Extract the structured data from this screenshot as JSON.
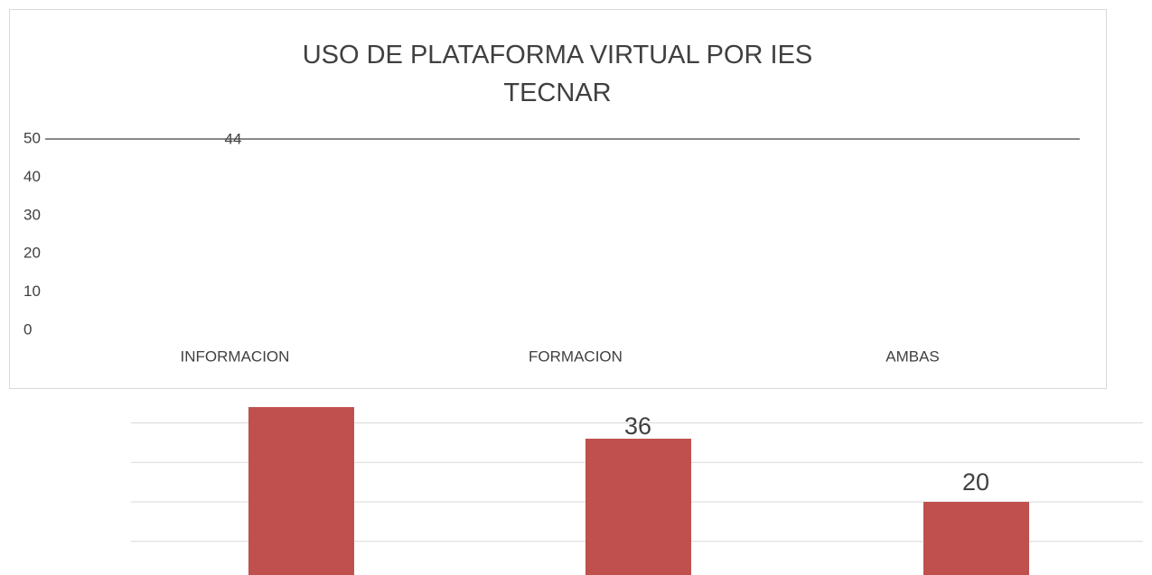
{
  "chart_data": {
    "type": "bar",
    "title": "USO DE PLATAFORMA VIRTUAL POR IES TECNAR",
    "categories": [
      "INFORMACION",
      "FORMACION",
      "AMBAS"
    ],
    "values": [
      44,
      36,
      20
    ],
    "color": "#c0504d",
    "ylim": [
      0,
      50
    ],
    "yticks": [
      0,
      10,
      20,
      30,
      40,
      50
    ],
    "grid": true
  }
}
